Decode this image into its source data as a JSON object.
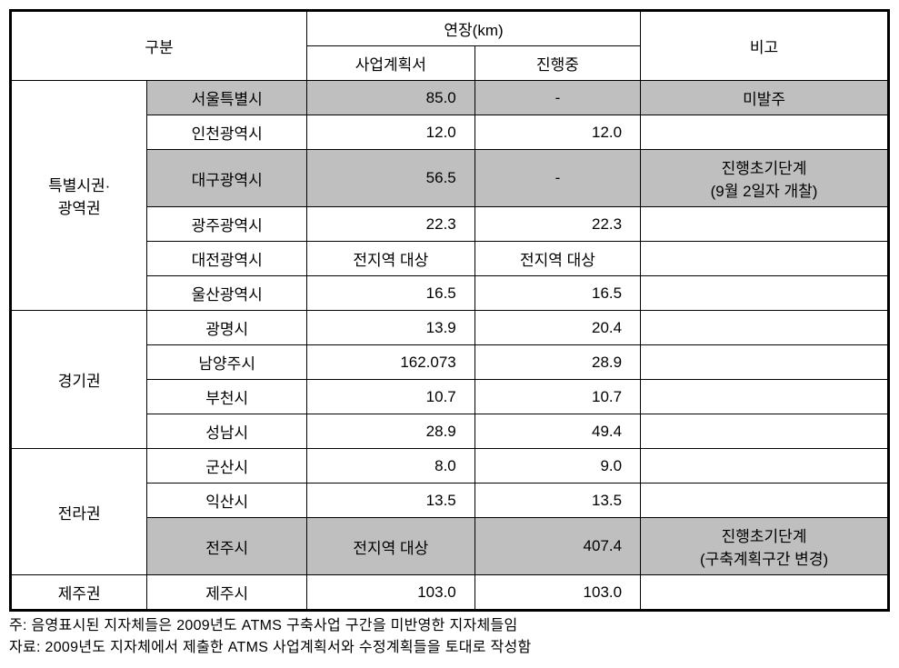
{
  "table": {
    "headers": {
      "category": "구분",
      "length_km": "연장(km)",
      "plan": "사업계획서",
      "in_progress": "진행중",
      "note": "비고"
    },
    "groups": [
      {
        "region": "특별시권·\n광역권",
        "rowspan": 6,
        "cities": [
          {
            "name": "서울특별시",
            "plan": "85.0",
            "progress": "-",
            "progress_align": "center",
            "note": "미발주",
            "highlighted": true
          },
          {
            "name": "인천광역시",
            "plan": "12.0",
            "progress": "12.0",
            "progress_align": "right",
            "note": "",
            "highlighted": false
          },
          {
            "name": "대구광역시",
            "plan": "56.5",
            "progress": "-",
            "progress_align": "center",
            "note": "진행초기단계\n(9월 2일자 개찰)",
            "highlighted": true
          },
          {
            "name": "광주광역시",
            "plan": "22.3",
            "progress": "22.3",
            "progress_align": "right",
            "note": "",
            "highlighted": false
          },
          {
            "name": "대전광역시",
            "plan": "전지역 대상",
            "plan_align": "center",
            "progress": "전지역 대상",
            "progress_align": "center",
            "note": "",
            "highlighted": false
          },
          {
            "name": "울산광역시",
            "plan": "16.5",
            "progress": "16.5",
            "progress_align": "right",
            "note": "",
            "highlighted": false
          }
        ]
      },
      {
        "region": "경기권",
        "rowspan": 4,
        "cities": [
          {
            "name": "광명시",
            "plan": "13.9",
            "progress": "20.4",
            "progress_align": "right",
            "note": "",
            "highlighted": false
          },
          {
            "name": "남양주시",
            "plan": "162.073",
            "progress": "28.9",
            "progress_align": "right",
            "note": "",
            "highlighted": false
          },
          {
            "name": "부천시",
            "plan": "10.7",
            "progress": "10.7",
            "progress_align": "right",
            "note": "",
            "highlighted": false
          },
          {
            "name": "성남시",
            "plan": "28.9",
            "progress": "49.4",
            "progress_align": "right",
            "note": "",
            "highlighted": false
          }
        ]
      },
      {
        "region": "전라권",
        "rowspan": 3,
        "cities": [
          {
            "name": "군산시",
            "plan": "8.0",
            "progress": "9.0",
            "progress_align": "right",
            "note": "",
            "highlighted": false
          },
          {
            "name": "익산시",
            "plan": "13.5",
            "progress": "13.5",
            "progress_align": "right",
            "note": "",
            "highlighted": false
          },
          {
            "name": "전주시",
            "plan": "전지역 대상",
            "plan_align": "center",
            "progress": "407.4",
            "progress_align": "right",
            "note": "진행초기단계\n(구축계획구간 변경)",
            "highlighted": true
          }
        ]
      },
      {
        "region": "제주권",
        "rowspan": 1,
        "cities": [
          {
            "name": "제주시",
            "plan": "103.0",
            "progress": "103.0",
            "progress_align": "right",
            "note": "",
            "highlighted": false
          }
        ]
      }
    ]
  },
  "footnotes": {
    "note1": "주: 음영표시된 지자체들은 2009년도 ATMS 구축사업 구간을 미반영한 지자체들임",
    "note2": "자료: 2009년도 지자체에서 제출한 ATMS 사업계획서와 수정계획들을 토대로 작성함"
  },
  "styling": {
    "highlight_color": "#bfbfbf",
    "border_color": "#000000",
    "background_color": "#ffffff",
    "font_size_cell": 17,
    "font_size_footnote": 16,
    "table_border_width": 3,
    "cell_border_width": 1,
    "col_widths": {
      "region": 150,
      "city": 180,
      "plan": 170,
      "progress": 170,
      "note": 290
    }
  }
}
